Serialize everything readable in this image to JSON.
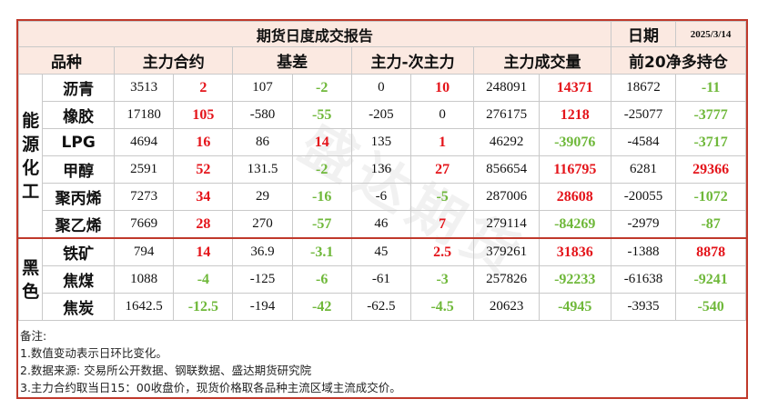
{
  "title": "期货日度成交报告",
  "date_label": "日期",
  "date_value": "2025/3/14",
  "headers": {
    "variety": "品种",
    "main_contract": "主力合约",
    "basis": "基差",
    "main_minus_second": "主力-次主力",
    "main_volume": "主力成交量",
    "top20_net_long": "前20净多持仓"
  },
  "groups": [
    {
      "label": "能源化工",
      "rows": [
        {
          "name": "沥青",
          "mc": "3513",
          "mc_chg": "2",
          "mc_dir": "up",
          "basis": "107",
          "basis_chg": "-2",
          "basis_dir": "dn",
          "spread": "0",
          "spread_chg": "10",
          "spread_dir": "up",
          "vol": "248091",
          "vol_chg": "14371",
          "vol_dir": "up",
          "net": "18672",
          "net_chg": "-11",
          "net_dir": "dn"
        },
        {
          "name": "橡胶",
          "mc": "17180",
          "mc_chg": "105",
          "mc_dir": "up",
          "basis": "-580",
          "basis_chg": "-55",
          "basis_dir": "dn",
          "spread": "-205",
          "spread_chg": "0",
          "spread_dir": "zero",
          "vol": "276175",
          "vol_chg": "1218",
          "vol_dir": "up",
          "net": "-25077",
          "net_chg": "-3777",
          "net_dir": "dn"
        },
        {
          "name": "LPG",
          "mc": "4694",
          "mc_chg": "16",
          "mc_dir": "up",
          "basis": "86",
          "basis_chg": "14",
          "basis_dir": "up",
          "spread": "135",
          "spread_chg": "1",
          "spread_dir": "up",
          "vol": "46292",
          "vol_chg": "-39076",
          "vol_dir": "dn",
          "net": "-4584",
          "net_chg": "-3717",
          "net_dir": "dn"
        },
        {
          "name": "甲醇",
          "mc": "2591",
          "mc_chg": "52",
          "mc_dir": "up",
          "basis": "131.5",
          "basis_chg": "-2",
          "basis_dir": "dn",
          "spread": "136",
          "spread_chg": "27",
          "spread_dir": "up",
          "vol": "856654",
          "vol_chg": "116795",
          "vol_dir": "up",
          "net": "6281",
          "net_chg": "29366",
          "net_dir": "up"
        },
        {
          "name": "聚丙烯",
          "mc": "7273",
          "mc_chg": "34",
          "mc_dir": "up",
          "basis": "29",
          "basis_chg": "-16",
          "basis_dir": "dn",
          "spread": "-6",
          "spread_chg": "-5",
          "spread_dir": "dn",
          "vol": "287006",
          "vol_chg": "28608",
          "vol_dir": "up",
          "net": "-20055",
          "net_chg": "-1072",
          "net_dir": "dn"
        },
        {
          "name": "聚乙烯",
          "mc": "7669",
          "mc_chg": "28",
          "mc_dir": "up",
          "basis": "270",
          "basis_chg": "-57",
          "basis_dir": "dn",
          "spread": "46",
          "spread_chg": "7",
          "spread_dir": "up",
          "vol": "279114",
          "vol_chg": "-84269",
          "vol_dir": "dn",
          "net": "-2979",
          "net_chg": "-87",
          "net_dir": "dn"
        }
      ]
    },
    {
      "label": "黑色",
      "rows": [
        {
          "name": "铁矿",
          "mc": "794",
          "mc_chg": "14",
          "mc_dir": "up",
          "basis": "36.9",
          "basis_chg": "-3.1",
          "basis_dir": "dn",
          "spread": "45",
          "spread_chg": "2.5",
          "spread_dir": "up",
          "vol": "379261",
          "vol_chg": "31836",
          "vol_dir": "up",
          "net": "-1388",
          "net_chg": "8878",
          "net_dir": "up"
        },
        {
          "name": "焦煤",
          "mc": "1088",
          "mc_chg": "-4",
          "mc_dir": "dn",
          "basis": "-125",
          "basis_chg": "-6",
          "basis_dir": "dn",
          "spread": "-61",
          "spread_chg": "-3",
          "spread_dir": "dn",
          "vol": "257826",
          "vol_chg": "-92233",
          "vol_dir": "dn",
          "net": "-61638",
          "net_chg": "-9241",
          "net_dir": "dn"
        },
        {
          "name": "焦炭",
          "mc": "1642.5",
          "mc_chg": "-12.5",
          "mc_dir": "dn",
          "basis": "-194",
          "basis_chg": "-42",
          "basis_dir": "dn",
          "spread": "-62.5",
          "spread_chg": "-4.5",
          "spread_dir": "dn",
          "vol": "20623",
          "vol_chg": "-4945",
          "vol_dir": "dn",
          "net": "-3935",
          "net_chg": "-540",
          "net_dir": "dn"
        }
      ]
    }
  ],
  "notes": [
    "备注:",
    "1.数值变动表示日环比变化。",
    "2.数据来源: 交易所公开数据、钢联数据、盛达期货研究院",
    "3.主力合约取当日15：00收盘价，现货价格取各品种主流区域主流成交价。"
  ],
  "colors": {
    "up": "#e4141a",
    "down": "#6fb83a",
    "border": "#c0392b",
    "header_bg": "#fbe9e1"
  },
  "watermark": "盛达期货"
}
